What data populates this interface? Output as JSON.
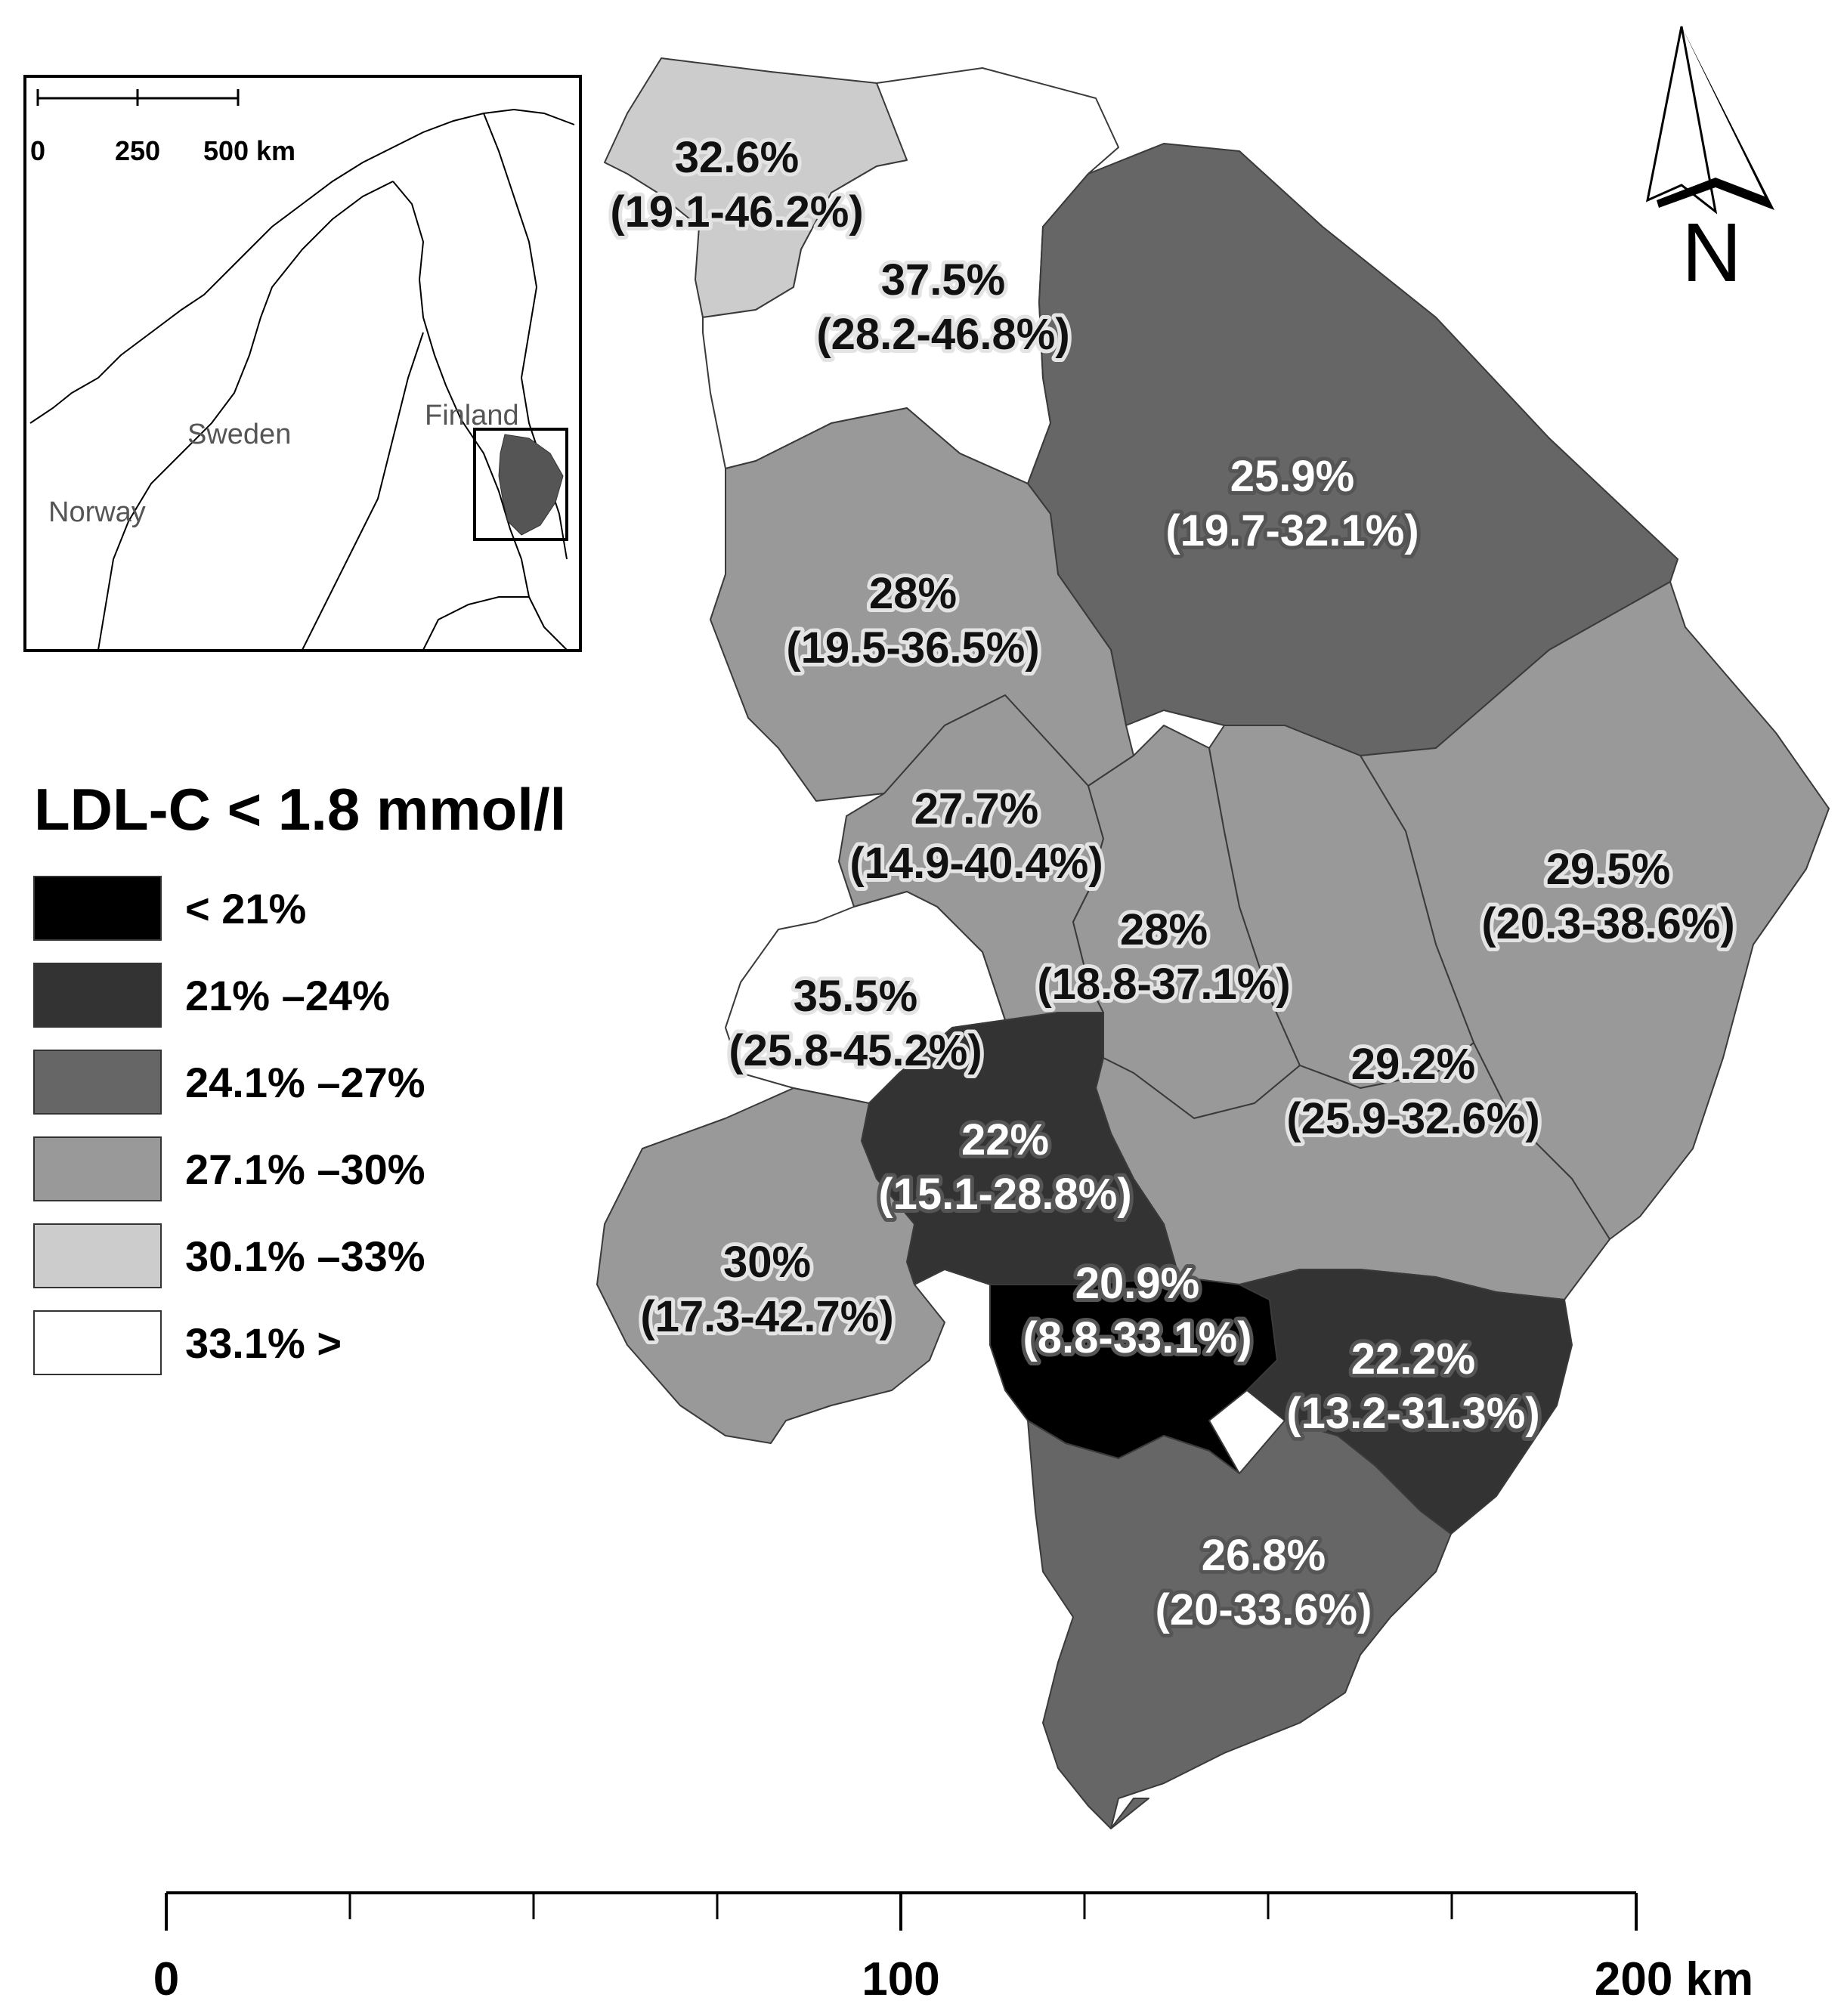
{
  "legend": {
    "title": "LDL-C < 1.8 mmol/l",
    "classes": [
      {
        "label": "< 21%",
        "color": "#000000"
      },
      {
        "label": "21% –24%",
        "color": "#333333"
      },
      {
        "label": "24.1% –27%",
        "color": "#666666"
      },
      {
        "label": "27.1% –30%",
        "color": "#999999"
      },
      {
        "label": "30.1% –33%",
        "color": "#cccccc"
      },
      {
        "label": "33.1%  >",
        "color": "#ffffff"
      }
    ]
  },
  "regions": [
    {
      "value": "32.6%",
      "ci": "(19.1-46.2%)",
      "class": 4
    },
    {
      "value": "37.5%",
      "ci": "(28.2-46.8%)",
      "class": 5
    },
    {
      "value": "25.9%",
      "ci": "(19.7-32.1%)",
      "class": 2
    },
    {
      "value": "28%",
      "ci": "(19.5-36.5%)",
      "class": 3
    },
    {
      "value": "27.7%",
      "ci": "(14.9-40.4%)",
      "class": 3
    },
    {
      "value": "28%",
      "ci": "(18.8-37.1%)",
      "class": 3
    },
    {
      "value": "29.5%",
      "ci": "(20.3-38.6%)",
      "class": 3
    },
    {
      "value": "35.5%",
      "ci": "(25.8-45.2%)",
      "class": 5
    },
    {
      "value": "29.2%",
      "ci": "(25.9-32.6%)",
      "class": 3
    },
    {
      "value": "22%",
      "ci": "(15.1-28.8%)",
      "class": 1
    },
    {
      "value": "30%",
      "ci": "(17.3-42.7%)",
      "class": 3
    },
    {
      "value": "20.9%",
      "ci": "(8.8-33.1%)",
      "class": 0
    },
    {
      "value": "22.2%",
      "ci": "(13.2-31.3%)",
      "class": 1
    },
    {
      "value": "26.8%",
      "ci": "(20-33.6%)",
      "class": 2
    }
  ],
  "north_arrow": {
    "label": "N"
  },
  "scale_bar": {
    "labels": [
      "0",
      "100",
      "200 km"
    ]
  },
  "inset": {
    "scale_labels": [
      "0",
      "250",
      "500 km"
    ],
    "countries": [
      "Finland",
      "Sweden",
      "Norway"
    ]
  }
}
